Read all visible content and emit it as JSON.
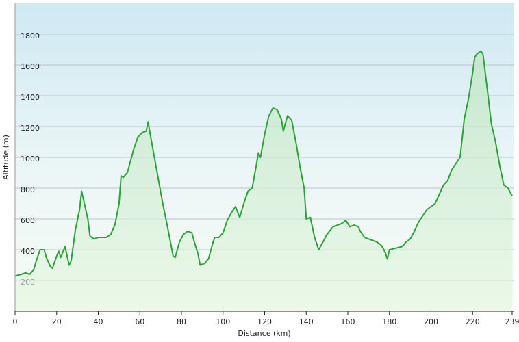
{
  "chart_data": {
    "type": "line",
    "x_label": "Distance  (km)",
    "y_label": "Altitude (m)",
    "xlim": [
      0,
      240
    ],
    "ylim": [
      0,
      2000
    ],
    "xticks": [
      0,
      20,
      40,
      60,
      80,
      100,
      120,
      140,
      160,
      180,
      200,
      220,
      239
    ],
    "yticks": [
      200,
      400,
      600,
      800,
      1000,
      1200,
      1400,
      1600,
      1800
    ],
    "grid": true,
    "x": [
      0,
      3,
      5,
      7,
      9,
      10,
      12,
      14,
      15,
      17,
      18,
      20,
      21,
      22,
      24,
      26,
      27,
      29,
      31,
      32,
      33,
      35,
      36,
      38,
      40,
      44,
      46,
      48,
      50,
      51,
      52,
      54,
      57,
      59,
      61,
      63,
      64,
      65,
      67,
      69,
      71,
      73,
      75,
      76,
      77,
      79,
      81,
      83,
      85,
      86,
      88,
      89,
      91,
      93,
      95,
      96,
      98,
      100,
      102,
      104,
      106,
      108,
      110,
      112,
      114,
      116,
      117,
      118,
      120,
      122,
      124,
      126,
      128,
      129,
      131,
      133,
      135,
      137,
      139,
      140,
      142,
      144,
      146,
      148,
      150,
      153,
      157,
      159,
      161,
      163,
      165,
      166,
      168,
      170,
      172,
      174,
      176,
      177,
      178,
      179,
      180,
      183,
      186,
      188,
      190,
      192,
      194,
      196,
      198,
      200,
      202,
      204,
      206,
      208,
      210,
      212,
      214,
      216,
      218,
      220,
      221,
      222,
      224,
      225,
      227,
      229,
      231,
      233,
      235,
      237,
      239
    ],
    "series": [
      {
        "name": "Altitude",
        "color": "#2aa236",
        "values": [
          230,
          240,
          250,
          240,
          270,
          320,
          400,
          400,
          350,
          290,
          280,
          360,
          390,
          350,
          420,
          300,
          330,
          530,
          660,
          780,
          720,
          600,
          490,
          470,
          480,
          480,
          500,
          560,
          700,
          880,
          870,
          900,
          1050,
          1130,
          1160,
          1170,
          1230,
          1150,
          1000,
          850,
          700,
          570,
          430,
          360,
          350,
          450,
          500,
          520,
          510,
          460,
          370,
          300,
          310,
          340,
          440,
          480,
          480,
          510,
          590,
          640,
          680,
          610,
          700,
          780,
          800,
          950,
          1030,
          1000,
          1150,
          1270,
          1320,
          1310,
          1250,
          1170,
          1270,
          1240,
          1100,
          940,
          800,
          600,
          610,
          480,
          400,
          450,
          500,
          550,
          570,
          590,
          550,
          560,
          550,
          520,
          480,
          470,
          460,
          450,
          430,
          410,
          380,
          340,
          400,
          410,
          420,
          450,
          470,
          520,
          580,
          620,
          660,
          680,
          700,
          760,
          820,
          850,
          920,
          960,
          1000,
          1250,
          1380,
          1550,
          1650,
          1670,
          1690,
          1670,
          1450,
          1220,
          1100,
          950,
          820,
          800,
          750
        ]
      }
    ]
  }
}
